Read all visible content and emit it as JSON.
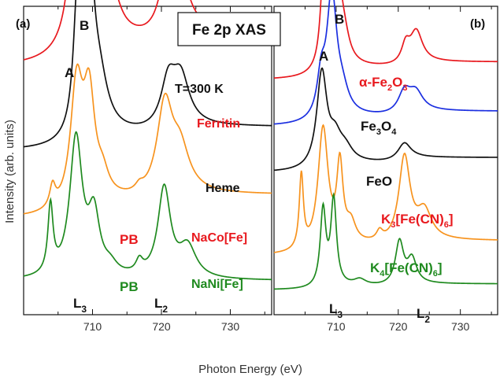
{
  "title": "Fe 2p XAS",
  "colors": {
    "red": "#e8191e",
    "black": "#111111",
    "orange": "#f7931e",
    "green": "#1f8a1f",
    "blue": "#1b2fe0"
  },
  "chart_data": [
    {
      "type": "line",
      "panel": "(a)",
      "xlabel": "Photon Energy (eV)",
      "ylabel": "Intensity (arb. units)",
      "xlim": [
        700,
        736
      ],
      "xticks": [
        "710",
        "720",
        "730"
      ],
      "annotations": {
        "a_label": "A",
        "b_label": "B",
        "temp": "T=300 K",
        "l3": "L",
        "l3_sub": "3",
        "l2": "L",
        "l2_sub": "2",
        "pb1": "PB",
        "pb2": "PB"
      },
      "series": [
        {
          "name": "Ferritin",
          "color": "#e8191e",
          "offset": 0.8,
          "peaks": [
            [
              707.8,
              0.53,
              0.9
            ],
            [
              709.3,
              1.0,
              1.0
            ],
            [
              711.0,
              0.18,
              1.5
            ],
            [
              713.0,
              0.06,
              1.3
            ],
            [
              720.8,
              0.18,
              1.3
            ],
            [
              722.6,
              0.18,
              1.5
            ]
          ],
          "steps": [
            [
              710,
              0.07,
              1.0
            ],
            [
              722,
              0.045,
              1.0
            ]
          ]
        },
        {
          "name": "Heme",
          "color": "#111111",
          "offset": 0.53,
          "peaks": [
            [
              707.8,
              0.38,
              0.7
            ],
            [
              709.4,
              0.62,
              0.9
            ],
            [
              711.0,
              0.14,
              1.5
            ],
            [
              721.0,
              0.15,
              1.3
            ],
            [
              722.8,
              0.15,
              1.5
            ]
          ],
          "steps": [
            [
              710,
              0.05,
              1.0
            ],
            [
              722,
              0.03,
              1.0
            ]
          ]
        },
        {
          "name": "NaCo[Fe]",
          "color": "#f7931e",
          "offset": 0.31,
          "peaks": [
            [
              704.2,
              0.07,
              0.5
            ],
            [
              707.7,
              0.4,
              1.1
            ],
            [
              709.5,
              0.34,
              1.0
            ],
            [
              711.5,
              0.06,
              1.0
            ],
            [
              716.8,
              0.02,
              0.7
            ],
            [
              720.5,
              0.3,
              1.4
            ],
            [
              722.7,
              0.13,
              1.6
            ]
          ],
          "steps": [
            [
              710,
              0.05,
              1.0
            ],
            [
              722,
              0.03,
              1.0
            ]
          ]
        },
        {
          "name": "NaNi[Fe]",
          "color": "#1f8a1f",
          "offset": 0.11,
          "peaks": [
            [
              703.9,
              0.22,
              0.45
            ],
            [
              707.6,
              0.45,
              1.1
            ],
            [
              710.2,
              0.19,
              1.0
            ],
            [
              712.6,
              0.03,
              1.2
            ],
            [
              716.8,
              0.04,
              0.6
            ],
            [
              720.4,
              0.29,
              1.1
            ],
            [
              723.8,
              0.1,
              1.5
            ]
          ],
          "steps": []
        }
      ]
    },
    {
      "type": "line",
      "panel": "(b)",
      "xlabel": "Photon Energy (eV)",
      "xlim": [
        700,
        736
      ],
      "xticks": [
        "710",
        "720",
        "730"
      ],
      "annotations": {
        "a_label": "A",
        "b_label": "B",
        "l3": "L",
        "l3_sub": "3",
        "l2": "L",
        "l2_sub": "2"
      },
      "series": [
        {
          "name": "α-Fe2O3",
          "label_main": "α-Fe",
          "label_sub1": "2",
          "label_mid": "O",
          "label_sub2": "3",
          "color": "#e8191e",
          "offset": 0.76,
          "peaks": [
            [
              708.0,
              0.3,
              0.6
            ],
            [
              709.8,
              0.56,
              0.75
            ],
            [
              711.3,
              0.07,
              1.0
            ],
            [
              721.2,
              0.06,
              0.8
            ],
            [
              722.9,
              0.1,
              1.2
            ]
          ],
          "steps": [
            [
              710,
              0.04,
              1.0
            ],
            [
              722,
              0.02,
              1.0
            ]
          ]
        },
        {
          "name": "Fe3O4",
          "label_main": "Fe",
          "label_sub1": "3",
          "label_mid": "O",
          "label_sub2": "4",
          "color": "#1b2fe0",
          "offset": 0.61,
          "peaks": [
            [
              707.6,
              0.12,
              0.8
            ],
            [
              709.3,
              0.4,
              1.0
            ],
            [
              711.0,
              0.06,
              1.2
            ],
            [
              721.0,
              0.07,
              1.2
            ],
            [
              722.8,
              0.06,
              1.4
            ]
          ],
          "steps": [
            [
              710,
              0.03,
              1.0
            ],
            [
              722,
              0.02,
              1.0
            ]
          ]
        },
        {
          "name": "FeO",
          "label_main": "FeO",
          "color": "#111111",
          "offset": 0.46,
          "peaks": [
            [
              707.7,
              0.31,
              1.0
            ],
            [
              709.8,
              0.08,
              1.2
            ],
            [
              711.5,
              0.04,
              1.4
            ],
            [
              721.0,
              0.06,
              1.3
            ]
          ],
          "steps": [
            [
              710,
              0.03,
              1.0
            ],
            [
              722,
              0.02,
              1.0
            ]
          ]
        },
        {
          "name": "K3[Fe(CN)6]",
          "label_main": "K",
          "label_sub1": "3",
          "label_mid": "[Fe(CN)",
          "label_sub2": "6",
          "label_end": "]",
          "color": "#f7931e",
          "offset": 0.19,
          "peaks": [
            [
              704.4,
              0.24,
              0.4
            ],
            [
              707.9,
              0.4,
              1.0
            ],
            [
              710.6,
              0.25,
              0.6
            ],
            [
              712.4,
              0.06,
              0.9
            ],
            [
              717.0,
              0.03,
              0.6
            ],
            [
              721.0,
              0.28,
              1.1
            ],
            [
              724.2,
              0.09,
              1.4
            ]
          ],
          "steps": [
            [
              710,
              0.03,
              1.0
            ],
            [
              722,
              0.02,
              1.0
            ]
          ]
        },
        {
          "name": "K4[Fe(CN)6]",
          "label_main": "K",
          "label_sub1": "4",
          "label_mid": "[Fe(CN)",
          "label_sub2": "6",
          "label_end": "]",
          "color": "#1f8a1f",
          "offset": 0.08,
          "peaks": [
            [
              707.9,
              0.25,
              0.55
            ],
            [
              709.6,
              0.28,
              0.55
            ],
            [
              713.8,
              0.02,
              1.2
            ],
            [
              720.2,
              0.14,
              0.8
            ],
            [
              722.2,
              0.08,
              0.9
            ]
          ],
          "steps": [
            [
              710,
              0.01,
              1.0
            ],
            [
              722,
              0.01,
              1.0
            ]
          ]
        }
      ]
    }
  ]
}
